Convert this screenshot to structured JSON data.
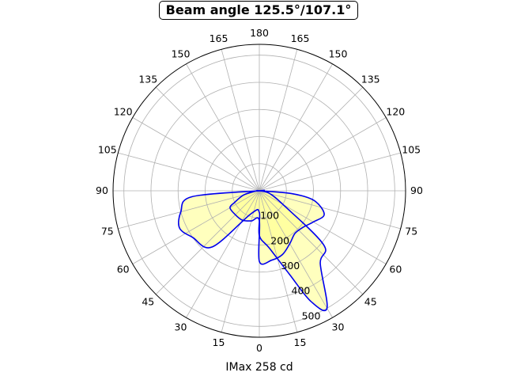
{
  "chart_data": {
    "type": "polar-line",
    "title": "Beam angle 125.5°/107.1°",
    "xlabel": "IMax 258 cd",
    "angle_tick_labels": [
      "0",
      "15",
      "30",
      "45",
      "60",
      "75",
      "90",
      "105",
      "120",
      "135",
      "150",
      "165",
      "180",
      "165",
      "150",
      "135",
      "120",
      "105",
      "90",
      "75",
      "60",
      "45",
      "30",
      "15"
    ],
    "radial_tick_labels": [
      "100",
      "200",
      "300",
      "400",
      "500"
    ],
    "rlim": [
      0,
      540
    ],
    "grid": true,
    "fill_color": "#ffff88",
    "line_color": "#0000ee",
    "series": [
      {
        "angle_deg": [
          0,
          15,
          30,
          45,
          60,
          65,
          75,
          85,
          90
        ],
        "r": [
          110,
          115,
          125,
          125,
          125,
          100,
          60,
          15,
          0
        ]
      },
      {
        "angle_deg": [
          0,
          10,
          20,
          25,
          30,
          40,
          50,
          60,
          75,
          85,
          90
        ],
        "r": [
          165,
          215,
          330,
          450,
          500,
          350,
          310,
          100,
          40,
          10,
          0
        ]
      },
      {
        "angle_deg": [
          0,
          10,
          20,
          30,
          40,
          50,
          60,
          70,
          80,
          85,
          90
        ],
        "r": [
          260,
          260,
          250,
          225,
          205,
          210,
          230,
          255,
          205,
          120,
          0
        ]
      },
      {
        "angle_deg": [
          0,
          20,
          40,
          55,
          65,
          75,
          85,
          90
        ],
        "r": [
          80,
          90,
          270,
          300,
          325,
          300,
          250,
          0
        ]
      }
    ]
  }
}
